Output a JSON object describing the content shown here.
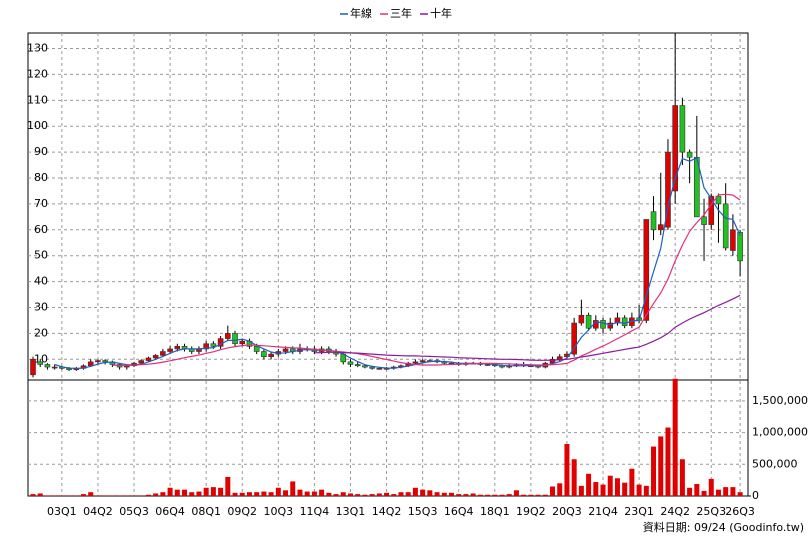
{
  "chart_data": {
    "type": "candlestick",
    "categories": [
      null,
      null,
      null,
      null,
      "03Q1",
      null,
      null,
      null,
      null,
      "04Q2",
      null,
      null,
      null,
      null,
      "05Q3",
      null,
      null,
      null,
      null,
      "06Q4",
      null,
      null,
      null,
      null,
      "08Q1",
      null,
      null,
      null,
      null,
      "09Q2",
      null,
      null,
      null,
      null,
      "10Q3",
      null,
      null,
      null,
      null,
      "11Q4",
      null,
      null,
      null,
      null,
      "13Q1",
      null,
      null,
      null,
      null,
      "14Q2",
      null,
      null,
      null,
      null,
      "15Q3",
      null,
      null,
      null,
      null,
      "16Q4",
      null,
      null,
      null,
      null,
      "18Q1",
      null,
      null,
      null,
      null,
      "19Q2",
      null,
      null,
      null,
      null,
      "20Q3",
      null,
      null,
      null,
      null,
      "21Q4",
      null,
      null,
      null,
      null,
      "23Q1",
      null,
      null,
      null,
      null,
      "24Q2",
      null,
      null,
      null,
      null,
      "25Q3",
      null,
      null,
      null,
      "26Q3"
    ],
    "open": [
      4,
      9,
      8,
      7,
      7,
      6.5,
      6,
      6.5,
      7.5,
      9,
      9.5,
      9,
      8,
      7,
      7.5,
      8.5,
      9.5,
      10.5,
      11.5,
      13,
      14,
      15,
      14,
      13,
      14,
      16,
      15,
      18,
      20,
      16,
      17,
      15,
      13,
      11,
      12,
      13,
      14,
      13,
      14,
      14,
      13,
      14,
      13,
      12,
      9,
      8,
      7.5,
      7,
      6.5,
      6.5,
      6.5,
      7,
      7.5,
      8.5,
      9,
      9.5,
      9.5,
      9,
      8.5,
      8.5,
      8,
      8.5,
      8.5,
      8,
      8,
      7.5,
      7,
      7.5,
      8,
      7.5,
      7.5,
      7,
      8.5,
      10,
      11,
      12,
      24,
      27,
      22,
      25,
      22,
      24,
      26,
      23,
      26,
      25,
      67,
      60,
      61,
      75,
      108,
      90,
      88,
      65,
      62,
      73,
      70,
      52,
      59
    ],
    "high": [
      11,
      10,
      8.5,
      8,
      7.5,
      7,
      7,
      8,
      10,
      10,
      10,
      9.5,
      8.5,
      8,
      9,
      10,
      11,
      12,
      14,
      15,
      16,
      16,
      15,
      15,
      17,
      17,
      19,
      23,
      21,
      18,
      18,
      16,
      14,
      13,
      14,
      15,
      15,
      16,
      15,
      15,
      15,
      15,
      14,
      12.5,
      10,
      9,
      8,
      7.5,
      7,
      7,
      7.5,
      8,
      9,
      10,
      10,
      10,
      10,
      9.5,
      9,
      9,
      9,
      9,
      9,
      8.5,
      8.5,
      8,
      8,
      8.5,
      9,
      8,
      8,
      9,
      11,
      12,
      13,
      26,
      33,
      28,
      27,
      26,
      26,
      28,
      27,
      28,
      31,
      64,
      73,
      82,
      95,
      136,
      111,
      91,
      104,
      72,
      74,
      74,
      78,
      66,
      60
    ],
    "low": [
      3,
      7,
      6,
      6,
      6,
      5.5,
      5.5,
      6,
      7,
      8,
      8,
      7,
      6,
      6,
      7,
      8,
      9,
      10,
      11,
      12,
      13,
      13,
      12,
      12,
      13,
      14,
      14,
      17,
      15,
      15,
      14,
      12,
      10,
      10,
      11,
      12,
      12,
      12,
      13,
      12,
      12,
      12,
      11,
      8,
      7,
      7,
      6.5,
      6,
      6,
      6,
      6,
      6.5,
      7,
      8,
      8.5,
      9,
      8.5,
      8,
      8,
      7.5,
      7.5,
      8,
      7.5,
      7.5,
      7,
      6.5,
      6.5,
      7,
      7,
      7,
      6.5,
      6.5,
      8,
      9,
      10,
      11,
      23,
      21,
      21,
      20,
      21,
      23,
      22,
      22,
      24,
      24,
      56,
      58,
      60,
      70,
      85,
      78,
      65,
      48,
      60,
      55,
      52,
      50,
      42
    ],
    "close": [
      10,
      8,
      7,
      7,
      6.5,
      6,
      6.5,
      7.5,
      9,
      9.5,
      9,
      8,
      7,
      7.5,
      8.5,
      9.5,
      10.5,
      11.5,
      13,
      14,
      15,
      14,
      13,
      14,
      16,
      15,
      18,
      20,
      16,
      17,
      15,
      13,
      11,
      12,
      13,
      14,
      13,
      14,
      14,
      13,
      14,
      13,
      12,
      9,
      8,
      7.5,
      7,
      6.5,
      6.5,
      6.5,
      7,
      7.5,
      8.5,
      9,
      9.5,
      9.5,
      9,
      8.5,
      8.5,
      8,
      8.5,
      8.5,
      8,
      8,
      7.5,
      7,
      7.5,
      8,
      7.5,
      7.5,
      7,
      8.5,
      10,
      11,
      12,
      24,
      27,
      22,
      25,
      22,
      24,
      26,
      23,
      26,
      25,
      64,
      60,
      62,
      90,
      108,
      90,
      88,
      65,
      62,
      73,
      70,
      53,
      60,
      48
    ],
    "volume": [
      30000,
      40000,
      10000,
      10000,
      10000,
      10000,
      10000,
      30000,
      60000,
      10000,
      10000,
      10000,
      10000,
      10000,
      10000,
      10000,
      20000,
      40000,
      60000,
      130000,
      100000,
      100000,
      60000,
      70000,
      130000,
      140000,
      130000,
      300000,
      50000,
      50000,
      60000,
      60000,
      70000,
      60000,
      130000,
      90000,
      230000,
      100000,
      70000,
      70000,
      100000,
      50000,
      30000,
      60000,
      40000,
      30000,
      20000,
      30000,
      40000,
      50000,
      30000,
      60000,
      60000,
      130000,
      100000,
      90000,
      60000,
      50000,
      50000,
      30000,
      30000,
      40000,
      20000,
      20000,
      20000,
      20000,
      30000,
      90000,
      20000,
      20000,
      20000,
      20000,
      150000,
      200000,
      820000,
      580000,
      160000,
      350000,
      220000,
      180000,
      320000,
      280000,
      210000,
      430000,
      180000,
      160000,
      780000,
      940000,
      1080000,
      1850000,
      580000,
      130000,
      190000,
      80000,
      270000,
      100000,
      140000,
      140000,
      60000
    ],
    "up_color": "#e00000",
    "down_color": "#22c022",
    "volume_color": "#e00000",
    "series": [
      {
        "name": "年線",
        "color": "#1f5fbf",
        "values": [
          null,
          null,
          null,
          8,
          7.1,
          6.6,
          6.5,
          6.6,
          7.3,
          8.1,
          8.8,
          8.9,
          8.4,
          7.9,
          7.8,
          8.1,
          9,
          10,
          11.1,
          12.3,
          13.4,
          14,
          14,
          14,
          14.3,
          14.5,
          15.8,
          17.3,
          17.3,
          17.8,
          17,
          15.3,
          14,
          12.8,
          12.3,
          12.5,
          13,
          13.5,
          13.8,
          13.5,
          13.5,
          13.5,
          13,
          12,
          10.5,
          9.1,
          7.9,
          7.3,
          6.9,
          6.6,
          6.6,
          6.9,
          7.4,
          8,
          8.6,
          9.1,
          9.3,
          9.1,
          8.9,
          8.5,
          8.4,
          8.4,
          8.3,
          8.3,
          8,
          7.6,
          7.5,
          7.5,
          7.5,
          7.6,
          7.5,
          7.6,
          8.3,
          9.1,
          10.4,
          14.3,
          18.5,
          21.3,
          24.5,
          24,
          23.3,
          24.3,
          23.8,
          24.8,
          25,
          34.5,
          43.8,
          52.8,
          69,
          80,
          87.5,
          86.5,
          87.8,
          76.3,
          72,
          67.5,
          64.5,
          64,
          57.8
        ]
      },
      {
        "name": "三年",
        "color": "#e0307a",
        "values": [
          null,
          null,
          null,
          null,
          null,
          null,
          null,
          null,
          null,
          null,
          null,
          7.8,
          7.6,
          7.6,
          7.7,
          7.9,
          8.1,
          8.4,
          8.9,
          9.4,
          10,
          10.6,
          11.1,
          11.6,
          12.3,
          12.9,
          13.7,
          14.4,
          14.9,
          15.3,
          15.5,
          15.4,
          15.2,
          15,
          14.8,
          14.6,
          14.4,
          14.3,
          14.1,
          13.8,
          13.6,
          13.3,
          13.1,
          12.8,
          12.5,
          12.2,
          11.7,
          11.1,
          10.5,
          9.9,
          9.3,
          8.7,
          8.3,
          8,
          7.8,
          7.8,
          7.8,
          7.9,
          8,
          8.1,
          8.2,
          8.3,
          8.4,
          8.4,
          8.4,
          8.3,
          8.2,
          8.1,
          8,
          7.9,
          7.8,
          7.8,
          7.9,
          8.1,
          8.4,
          9.7,
          11.3,
          12.5,
          13.9,
          15.1,
          16.5,
          18,
          19.4,
          21,
          22.4,
          27.1,
          31.5,
          35.6,
          41,
          48,
          54.1,
          59.4,
          62.8,
          65.8,
          69.8,
          73.5,
          73.7,
          73.4,
          71.5
        ]
      },
      {
        "name": "十年",
        "color": "#8a1c9c",
        "values": [
          null,
          null,
          null,
          null,
          null,
          null,
          null,
          null,
          null,
          null,
          null,
          null,
          null,
          null,
          null,
          null,
          null,
          null,
          null,
          null,
          null,
          null,
          null,
          null,
          null,
          null,
          null,
          null,
          null,
          null,
          null,
          null,
          null,
          null,
          null,
          null,
          null,
          null,
          null,
          12.5,
          12.6,
          12.7,
          12.7,
          12.6,
          12.5,
          12.4,
          12.2,
          12,
          11.8,
          11.6,
          11.5,
          11.4,
          11.3,
          11.3,
          11.2,
          11.1,
          11,
          10.9,
          10.8,
          10.6,
          10.5,
          10.4,
          10.3,
          10.2,
          10.1,
          10,
          10,
          9.9,
          9.8,
          9.7,
          9.6,
          9.6,
          9.7,
          9.8,
          10,
          10.4,
          10.9,
          11.3,
          11.8,
          12.3,
          12.8,
          13.3,
          13.8,
          14.3,
          14.7,
          15.8,
          17,
          18.3,
          20,
          22.4,
          24,
          25.5,
          26.8,
          28,
          29.4,
          30.8,
          32,
          33.3,
          34.7
        ]
      }
    ],
    "ylim": [
      2,
      136
    ],
    "yticks": [
      10,
      20,
      30,
      40,
      50,
      60,
      70,
      80,
      90,
      100,
      110,
      120,
      130
    ],
    "y2lim": [
      0,
      1830000
    ],
    "y2ticks": [
      0,
      {
        "value": 500000,
        "label": "500,000"
      },
      {
        "value": 1000000,
        "label": "1,000,000"
      },
      {
        "value": 1500000,
        "label": "1,500,000"
      }
    ],
    "grid": true,
    "legend": "top",
    "footer": "資料日期: 09/24 (Goodinfo.tw)"
  }
}
